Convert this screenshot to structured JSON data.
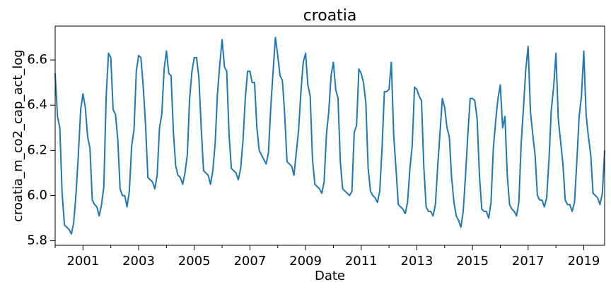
{
  "chart_data": {
    "type": "line",
    "title": "croatia",
    "xlabel": "Date",
    "ylabel": "croatia_m_co2_cap_act_log",
    "xlim": [
      "2000-01",
      "2019-10"
    ],
    "ylim": [
      5.78,
      6.75
    ],
    "grid": false,
    "legend": "none",
    "x_tick_labels": [
      "2001",
      "2003",
      "2005",
      "2007",
      "2009",
      "2011",
      "2013",
      "2015",
      "2017",
      "2019"
    ],
    "y_tick_labels": [
      "5.8",
      "6.0",
      "6.2",
      "6.4",
      "6.6"
    ],
    "series": [
      {
        "color": "#1f77b4",
        "x": [
          "2000-01",
          "2000-02",
          "2000-03",
          "2000-04",
          "2000-05",
          "2000-06",
          "2000-07",
          "2000-08",
          "2000-09",
          "2000-10",
          "2000-11",
          "2000-12",
          "2001-01",
          "2001-02",
          "2001-03",
          "2001-04",
          "2001-05",
          "2001-06",
          "2001-07",
          "2001-08",
          "2001-09",
          "2001-10",
          "2001-11",
          "2001-12",
          "2002-01",
          "2002-02",
          "2002-03",
          "2002-04",
          "2002-05",
          "2002-06",
          "2002-07",
          "2002-08",
          "2002-09",
          "2002-10",
          "2002-11",
          "2002-12",
          "2003-01",
          "2003-02",
          "2003-03",
          "2003-04",
          "2003-05",
          "2003-06",
          "2003-07",
          "2003-08",
          "2003-09",
          "2003-10",
          "2003-11",
          "2003-12",
          "2004-01",
          "2004-02",
          "2004-03",
          "2004-04",
          "2004-05",
          "2004-06",
          "2004-07",
          "2004-08",
          "2004-09",
          "2004-10",
          "2004-11",
          "2004-12",
          "2005-01",
          "2005-02",
          "2005-03",
          "2005-04",
          "2005-05",
          "2005-06",
          "2005-07",
          "2005-08",
          "2005-09",
          "2005-10",
          "2005-11",
          "2005-12",
          "2006-01",
          "2006-02",
          "2006-03",
          "2006-04",
          "2006-05",
          "2006-06",
          "2006-07",
          "2006-08",
          "2006-09",
          "2006-10",
          "2006-11",
          "2006-12",
          "2007-01",
          "2007-02",
          "2007-03",
          "2007-04",
          "2007-05",
          "2007-06",
          "2007-07",
          "2007-08",
          "2007-09",
          "2007-10",
          "2007-11",
          "2007-12",
          "2008-01",
          "2008-02",
          "2008-03",
          "2008-04",
          "2008-05",
          "2008-06",
          "2008-07",
          "2008-08",
          "2008-09",
          "2008-10",
          "2008-11",
          "2008-12",
          "2009-01",
          "2009-02",
          "2009-03",
          "2009-04",
          "2009-05",
          "2009-06",
          "2009-07",
          "2009-08",
          "2009-09",
          "2009-10",
          "2009-11",
          "2009-12",
          "2010-01",
          "2010-02",
          "2010-03",
          "2010-04",
          "2010-05",
          "2010-06",
          "2010-07",
          "2010-08",
          "2010-09",
          "2010-10",
          "2010-11",
          "2010-12",
          "2011-01",
          "2011-02",
          "2011-03",
          "2011-04",
          "2011-05",
          "2011-06",
          "2011-07",
          "2011-08",
          "2011-09",
          "2011-10",
          "2011-11",
          "2011-12",
          "2012-01",
          "2012-02",
          "2012-03",
          "2012-04",
          "2012-05",
          "2012-06",
          "2012-07",
          "2012-08",
          "2012-09",
          "2012-10",
          "2012-11",
          "2012-12",
          "2013-01",
          "2013-02",
          "2013-03",
          "2013-04",
          "2013-05",
          "2013-06",
          "2013-07",
          "2013-08",
          "2013-09",
          "2013-10",
          "2013-11",
          "2013-12",
          "2014-01",
          "2014-02",
          "2014-03",
          "2014-04",
          "2014-05",
          "2014-06",
          "2014-07",
          "2014-08",
          "2014-09",
          "2014-10",
          "2014-11",
          "2014-12",
          "2015-01",
          "2015-02",
          "2015-03",
          "2015-04",
          "2015-05",
          "2015-06",
          "2015-07",
          "2015-08",
          "2015-09",
          "2015-10",
          "2015-11",
          "2015-12",
          "2016-01",
          "2016-02",
          "2016-03",
          "2016-04",
          "2016-05",
          "2016-06",
          "2016-07",
          "2016-08",
          "2016-09",
          "2016-10",
          "2016-11",
          "2016-12",
          "2017-01",
          "2017-02",
          "2017-03",
          "2017-04",
          "2017-05",
          "2017-06",
          "2017-07",
          "2017-08",
          "2017-09",
          "2017-10",
          "2017-11",
          "2017-12",
          "2018-01",
          "2018-02",
          "2018-03",
          "2018-04",
          "2018-05",
          "2018-06",
          "2018-07",
          "2018-08",
          "2018-09",
          "2018-10",
          "2018-11",
          "2018-12",
          "2019-01",
          "2019-02",
          "2019-03",
          "2019-04",
          "2019-05",
          "2019-06",
          "2019-07",
          "2019-08",
          "2019-09",
          "2019-10"
        ],
        "y": [
          6.54,
          6.35,
          6.3,
          6.01,
          5.87,
          5.86,
          5.85,
          5.83,
          5.88,
          6.01,
          6.18,
          6.38,
          6.45,
          6.39,
          6.26,
          6.21,
          5.98,
          5.96,
          5.95,
          5.91,
          5.96,
          6.04,
          6.44,
          6.63,
          6.61,
          6.38,
          6.36,
          6.25,
          6.03,
          6.0,
          6.0,
          5.95,
          6.02,
          6.22,
          6.29,
          6.55,
          6.62,
          6.61,
          6.48,
          6.31,
          6.08,
          6.07,
          6.06,
          6.03,
          6.09,
          6.3,
          6.36,
          6.56,
          6.64,
          6.54,
          6.53,
          6.28,
          6.13,
          6.09,
          6.08,
          6.05,
          6.1,
          6.18,
          6.43,
          6.55,
          6.61,
          6.61,
          6.52,
          6.3,
          6.11,
          6.1,
          6.09,
          6.05,
          6.11,
          6.23,
          6.45,
          6.58,
          6.69,
          6.57,
          6.55,
          6.27,
          6.12,
          6.11,
          6.1,
          6.07,
          6.12,
          6.24,
          6.43,
          6.55,
          6.55,
          6.5,
          6.5,
          6.3,
          6.2,
          6.18,
          6.16,
          6.14,
          6.19,
          6.39,
          6.55,
          6.7,
          6.62,
          6.53,
          6.51,
          6.36,
          6.15,
          6.14,
          6.13,
          6.09,
          6.19,
          6.29,
          6.46,
          6.59,
          6.63,
          6.49,
          6.44,
          6.16,
          6.05,
          6.04,
          6.03,
          6.01,
          6.06,
          6.27,
          6.37,
          6.53,
          6.59,
          6.47,
          6.43,
          6.15,
          6.03,
          6.02,
          6.01,
          6.0,
          6.02,
          6.28,
          6.31,
          6.56,
          6.54,
          6.5,
          6.41,
          6.12,
          6.02,
          6.0,
          5.99,
          5.97,
          6.02,
          6.21,
          6.46,
          6.46,
          6.47,
          6.59,
          6.27,
          6.12,
          5.96,
          5.95,
          5.94,
          5.92,
          5.97,
          6.12,
          6.22,
          6.48,
          6.47,
          6.44,
          6.42,
          6.13,
          5.95,
          5.93,
          5.93,
          5.91,
          5.96,
          6.13,
          6.28,
          6.43,
          6.39,
          6.3,
          6.26,
          6.08,
          5.97,
          5.91,
          5.89,
          5.86,
          5.93,
          6.09,
          6.27,
          6.43,
          6.43,
          6.42,
          6.34,
          6.09,
          5.94,
          5.93,
          5.93,
          5.9,
          5.97,
          6.21,
          6.33,
          6.43,
          6.49,
          6.3,
          6.35,
          6.09,
          5.96,
          5.94,
          5.93,
          5.91,
          5.97,
          6.23,
          6.39,
          6.56,
          6.66,
          6.37,
          6.27,
          6.18,
          6.0,
          5.98,
          5.98,
          5.95,
          5.99,
          6.16,
          6.38,
          6.48,
          6.63,
          6.34,
          6.24,
          6.14,
          5.98,
          5.96,
          5.96,
          5.93,
          5.97,
          6.15,
          6.35,
          6.44,
          6.64,
          6.36,
          6.26,
          6.18,
          6.01,
          6.0,
          5.99,
          5.96,
          6.01,
          6.2
        ]
      }
    ]
  }
}
